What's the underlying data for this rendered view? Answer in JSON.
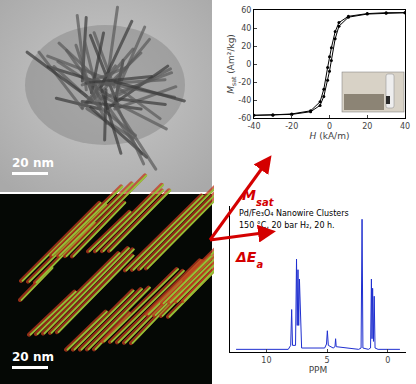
{
  "figure": {
    "images": [
      {
        "scale_label": "20 nm"
      },
      {
        "scale_label": "20 nm"
      }
    ],
    "arrows": [
      {
        "symbol": "M",
        "subscript": "sat"
      },
      {
        "symbol": "ΔE",
        "subscript": "a"
      }
    ]
  },
  "chart_data": [
    {
      "type": "line",
      "xlabel": {
        "symbol": "H",
        "unit": "(kA/m)"
      },
      "ylabel": {
        "symbol": "M",
        "subscript": "sat",
        "unit": "(Am²/kg)"
      },
      "x": [
        40,
        30,
        20,
        10,
        5,
        3,
        1,
        0,
        -1,
        -3,
        -5,
        -10,
        -20,
        -30,
        -40,
        -30,
        -20,
        -10,
        -5,
        -3,
        -1,
        0,
        1,
        3,
        5,
        10,
        20,
        30,
        40
      ],
      "values": [
        57,
        57,
        56,
        53,
        46,
        36,
        18,
        8,
        -4,
        -28,
        -42,
        -52,
        -55.5,
        -56.5,
        -57,
        -57,
        -56,
        -53,
        -46,
        -36,
        -18,
        -8,
        4,
        28,
        42,
        52,
        55.5,
        56.5,
        57
      ],
      "color": "#000000",
      "marker": "circle",
      "xlim": [
        -40,
        40
      ],
      "xticks": [
        -40,
        -20,
        0,
        20,
        40
      ],
      "ylim": [
        -60,
        60
      ],
      "yticks": [
        -60,
        -40,
        -20,
        0,
        20,
        40,
        60
      ],
      "grid": false
    },
    {
      "type": "line",
      "xlabel": "PPM",
      "annotations": [
        "Pd/Fe₃O₄ Nanowire Clusters",
        "150 °C, 20 bar H₂, 20 h."
      ],
      "x": [
        12.5,
        8.2,
        8.0,
        7.92,
        7.85,
        7.6,
        7.52,
        7.46,
        7.4,
        7.34,
        7.28,
        7.1,
        5.2,
        5.05,
        4.98,
        4.9,
        4.5,
        4.35,
        4.3,
        4.25,
        2.4,
        2.2,
        2.12,
        2.05,
        1.6,
        1.42,
        1.35,
        1.3,
        1.25,
        1.18,
        1.12,
        1.05,
        0.8,
        -1.0
      ],
      "values": [
        0.02,
        0.02,
        0.05,
        0.32,
        0.05,
        0.05,
        0.7,
        0.2,
        0.62,
        0.2,
        0.55,
        0.03,
        0.03,
        0.06,
        0.16,
        0.05,
        0.03,
        0.04,
        0.1,
        0.04,
        0.02,
        0.03,
        1.0,
        0.03,
        0.02,
        0.03,
        0.55,
        0.1,
        0.48,
        0.08,
        0.42,
        0.03,
        0.02,
        0.02
      ],
      "color": "#1f2fd0",
      "xlim": [
        13,
        -1.5
      ],
      "xticks": [
        10,
        5,
        0
      ],
      "ylim": [
        0,
        1.1
      ],
      "yticks": [],
      "tick_labels": "x",
      "grid": false
    }
  ]
}
